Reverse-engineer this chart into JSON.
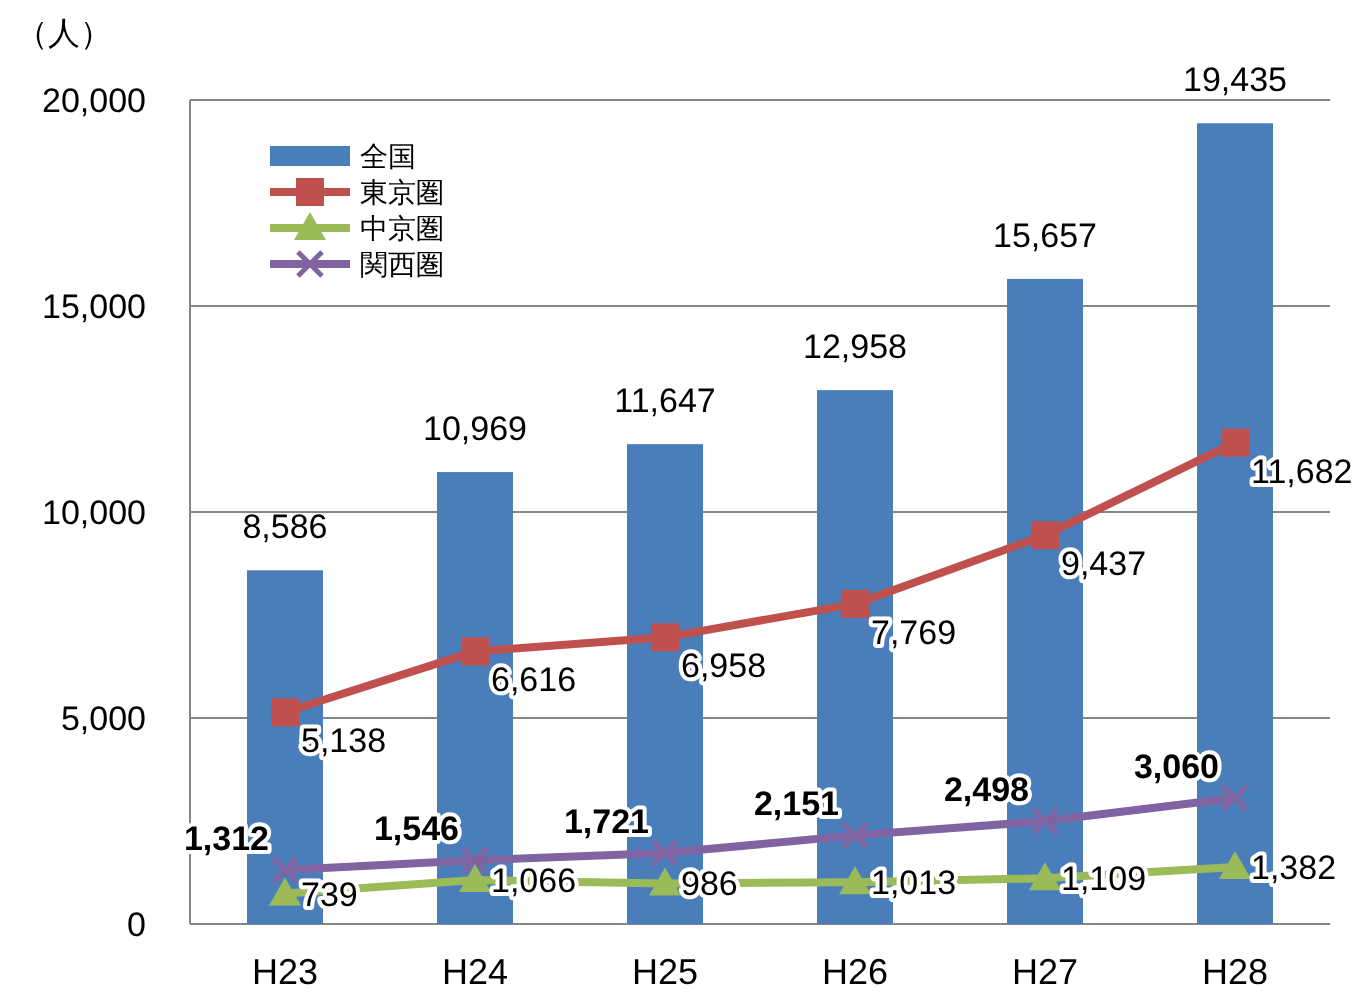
{
  "chart_data": {
    "type": "bar",
    "ylabel": "（人）",
    "categories": [
      "H23",
      "H24",
      "H25",
      "H26",
      "H27",
      "H28"
    ],
    "ylim": [
      0,
      20000
    ],
    "yticks": [
      {
        "value": 0,
        "label": "0"
      },
      {
        "value": 5000,
        "label": "5,000"
      },
      {
        "value": 10000,
        "label": "10,000"
      },
      {
        "value": 15000,
        "label": "15,000"
      },
      {
        "value": 20000,
        "label": "20,000"
      }
    ],
    "grid": "y",
    "legend": "top left",
    "series": [
      {
        "name": "全国",
        "color": "#4a7ebb",
        "values": [
          8586,
          10969,
          11647,
          12958,
          15657,
          19435
        ],
        "value_labels": [
          "8,586",
          "10,969",
          "11,647",
          "12,958",
          "15,657",
          "19,435"
        ]
      },
      {
        "name": "東京圏",
        "type": "line",
        "marker": "square",
        "color": "#c0504d",
        "values": [
          5138,
          6616,
          6958,
          7769,
          9437,
          11682
        ],
        "value_labels": [
          "5,138",
          "6,616",
          "6,958",
          "7,769",
          "9,437",
          "11,682"
        ]
      },
      {
        "name": "中京圏",
        "type": "line",
        "marker": "triangle",
        "color": "#9bbb59",
        "values": [
          739,
          1066,
          986,
          1013,
          1109,
          1382
        ],
        "value_labels": [
          "739",
          "1,066",
          "986",
          "1,013",
          "1,109",
          "1,382"
        ]
      },
      {
        "name": "関西圏",
        "type": "line",
        "marker": "cross",
        "color": "#8064a2",
        "values": [
          1312,
          1546,
          1721,
          2151,
          2498,
          3060
        ],
        "value_labels": [
          "1,312",
          "1,546",
          "1,721",
          "2,151",
          "2,498",
          "3,060"
        ]
      }
    ]
  }
}
